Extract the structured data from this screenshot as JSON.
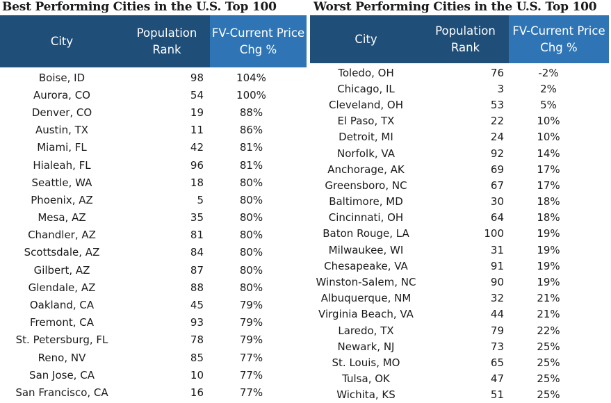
{
  "best": {
    "title": "Best Performing Cities in the U.S. Top 100",
    "headers": {
      "city": "City",
      "rank": "Population Rank",
      "chg": "FV-Current Price Chg %"
    },
    "rows": [
      {
        "city": "Boise, ID",
        "rank": "98",
        "chg": "104%"
      },
      {
        "city": "Aurora, CO",
        "rank": "54",
        "chg": "100%"
      },
      {
        "city": "Denver, CO",
        "rank": "19",
        "chg": "88%"
      },
      {
        "city": "Austin, TX",
        "rank": "11",
        "chg": "86%"
      },
      {
        "city": "Miami, FL",
        "rank": "42",
        "chg": "81%"
      },
      {
        "city": "Hialeah, FL",
        "rank": "96",
        "chg": "81%"
      },
      {
        "city": "Seattle, WA",
        "rank": "18",
        "chg": "80%"
      },
      {
        "city": "Phoenix, AZ",
        "rank": "5",
        "chg": "80%"
      },
      {
        "city": "Mesa, AZ",
        "rank": "35",
        "chg": "80%"
      },
      {
        "city": "Chandler, AZ",
        "rank": "81",
        "chg": "80%"
      },
      {
        "city": "Scottsdale, AZ",
        "rank": "84",
        "chg": "80%"
      },
      {
        "city": "Gilbert, AZ",
        "rank": "87",
        "chg": "80%"
      },
      {
        "city": "Glendale, AZ",
        "rank": "88",
        "chg": "80%"
      },
      {
        "city": "Oakland, CA",
        "rank": "45",
        "chg": "79%"
      },
      {
        "city": "Fremont, CA",
        "rank": "93",
        "chg": "79%"
      },
      {
        "city": "St. Petersburg, FL",
        "rank": "78",
        "chg": "79%"
      },
      {
        "city": "Reno, NV",
        "rank": "85",
        "chg": "77%"
      },
      {
        "city": "San Jose, CA",
        "rank": "10",
        "chg": "77%"
      },
      {
        "city": "San Francisco, CA",
        "rank": "16",
        "chg": "77%"
      }
    ]
  },
  "worst": {
    "title": "Worst Performing Cities in the U.S. Top 100",
    "headers": {
      "city": "City",
      "rank": "Population Rank",
      "chg": "FV-Current Price Chg %"
    },
    "rows": [
      {
        "city": "Toledo, OH",
        "rank": "76",
        "chg": "-2%"
      },
      {
        "city": "Chicago, IL",
        "rank": "3",
        "chg": "2%"
      },
      {
        "city": "Cleveland, OH",
        "rank": "53",
        "chg": "5%"
      },
      {
        "city": "El Paso, TX",
        "rank": "22",
        "chg": "10%"
      },
      {
        "city": "Detroit, MI",
        "rank": "24",
        "chg": "10%"
      },
      {
        "city": "Norfolk, VA",
        "rank": "92",
        "chg": "14%"
      },
      {
        "city": "Anchorage, AK",
        "rank": "69",
        "chg": "17%"
      },
      {
        "city": "Greensboro, NC",
        "rank": "67",
        "chg": "17%"
      },
      {
        "city": "Baltimore, MD",
        "rank": "30",
        "chg": "18%"
      },
      {
        "city": "Cincinnati, OH",
        "rank": "64",
        "chg": "18%"
      },
      {
        "city": "Baton Rouge, LA",
        "rank": "100",
        "chg": "19%"
      },
      {
        "city": "Milwaukee, WI",
        "rank": "31",
        "chg": "19%"
      },
      {
        "city": "Chesapeake, VA",
        "rank": "91",
        "chg": "19%"
      },
      {
        "city": "Winston-Salem, NC",
        "rank": "90",
        "chg": "19%"
      },
      {
        "city": "Albuquerque, NM",
        "rank": "32",
        "chg": "21%"
      },
      {
        "city": "Virginia Beach, VA",
        "rank": "44",
        "chg": "21%"
      },
      {
        "city": "Laredo, TX",
        "rank": "79",
        "chg": "22%"
      },
      {
        "city": "Newark, NJ",
        "rank": "73",
        "chg": "25%"
      },
      {
        "city": "St. Louis, MO",
        "rank": "65",
        "chg": "25%"
      },
      {
        "city": "Tulsa, OK",
        "rank": "47",
        "chg": "25%"
      },
      {
        "city": "Wichita, KS",
        "rank": "51",
        "chg": "25%"
      }
    ]
  }
}
